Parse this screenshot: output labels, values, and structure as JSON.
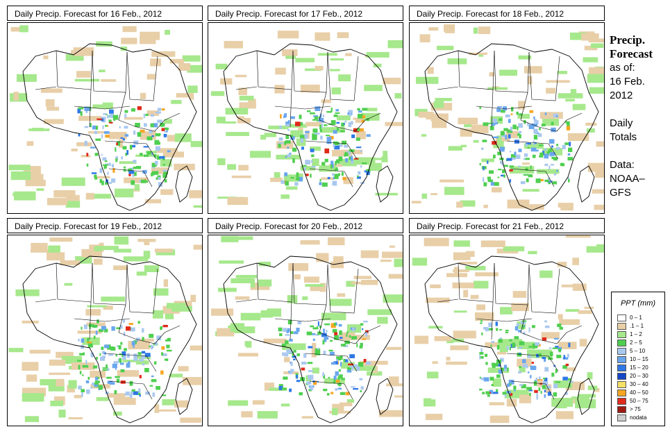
{
  "panels": [
    {
      "title": "Daily Precip. Forecast for  16 Feb., 2012"
    },
    {
      "title": "Daily Precip. Forecast for  17 Feb., 2012"
    },
    {
      "title": "Daily Precip. Forecast for  18 Feb., 2012"
    },
    {
      "title": "Daily Precip. Forecast for  19 Feb., 2012"
    },
    {
      "title": "Daily Precip. Forecast for  20 Feb., 2012"
    },
    {
      "title": "Daily Precip. Forecast for  21 Feb., 2012"
    }
  ],
  "side": {
    "heading": [
      "Precip.",
      "Forecast"
    ],
    "lines": [
      "as of:",
      "16 Feb.",
      "2012",
      "",
      "Daily",
      "Totals",
      "",
      "Data:",
      "NOAA–",
      "GFS"
    ]
  },
  "legend": {
    "title": "PPT (mm)",
    "items": [
      {
        "label": "0 – 1",
        "color": "#ffffff"
      },
      {
        "label": ".1 – 1",
        "color": "#e8cfa8"
      },
      {
        "label": "1 – 2",
        "color": "#a6e88c"
      },
      {
        "label": "2 – 5",
        "color": "#4fcf4f"
      },
      {
        "label": "5 – 10",
        "color": "#a9c8ef"
      },
      {
        "label": "10 – 15",
        "color": "#6aa6ee"
      },
      {
        "label": "15 – 20",
        "color": "#2f78e6"
      },
      {
        "label": "20 – 30",
        "color": "#1448c8"
      },
      {
        "label": "30 – 40",
        "color": "#f5e066"
      },
      {
        "label": "40 – 50",
        "color": "#f6a623"
      },
      {
        "label": "50 – 75",
        "color": "#e02a1a"
      },
      {
        "label": "> 75",
        "color": "#9e1a12"
      },
      {
        "label": "nodata",
        "color": "#cfcfcf"
      }
    ]
  }
}
